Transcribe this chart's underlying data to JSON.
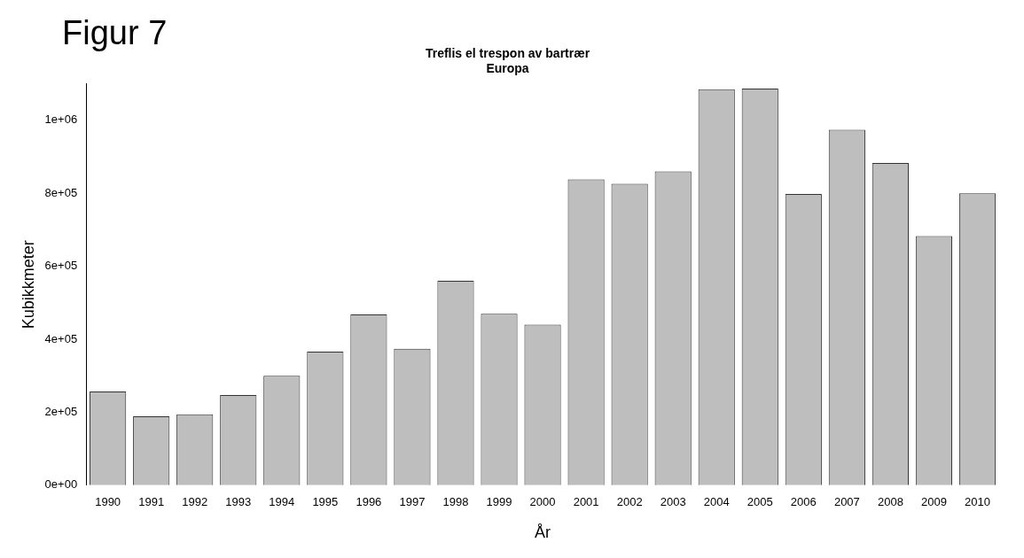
{
  "chart_data": {
    "type": "bar",
    "title": "Treflis el trespon av bartrær",
    "subtitle": "Europa",
    "xlabel": "År",
    "ylabel": "Kubikkmeter",
    "annotations": [
      "Figur 7"
    ],
    "categories": [
      "1990",
      "1991",
      "1992",
      "1993",
      "1994",
      "1995",
      "1996",
      "1997",
      "1998",
      "1999",
      "2000",
      "2001",
      "2002",
      "2003",
      "2004",
      "2005",
      "2006",
      "2007",
      "2008",
      "2009",
      "2010"
    ],
    "values": [
      257000,
      189000,
      194000,
      247000,
      300000,
      366000,
      468000,
      374000,
      560000,
      470000,
      440000,
      838000,
      826000,
      860000,
      1085000,
      1087000,
      798000,
      974000,
      883000,
      683000,
      800000
    ],
    "color": "#bebebe",
    "ylim": [
      0,
      1100000
    ],
    "yticks": [
      {
        "value": 0,
        "label": "0e+00"
      },
      {
        "value": 200000,
        "label": "2e+05"
      },
      {
        "value": 400000,
        "label": "4e+05"
      },
      {
        "value": 600000,
        "label": "6e+05"
      },
      {
        "value": 800000,
        "label": "8e+05"
      },
      {
        "value": 1000000,
        "label": "1e+06"
      }
    ],
    "grid": false,
    "legend": false
  }
}
